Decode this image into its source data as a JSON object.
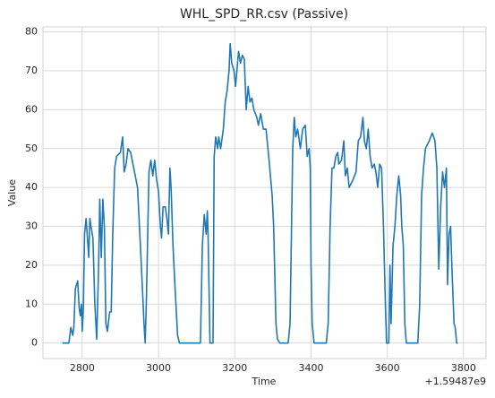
{
  "chart_data": {
    "type": "line",
    "title": "WHL_SPD_RR.csv (Passive)",
    "x_label": "Time",
    "y_label": "Value",
    "x_offset_label": "+1.59487e9",
    "xlim": [
      2697,
      3859
    ],
    "ylim": [
      -4,
      81.3
    ],
    "xticks": [
      2800,
      3000,
      3200,
      3400,
      3600,
      3800
    ],
    "yticks": [
      0,
      10,
      20,
      30,
      40,
      50,
      60,
      70,
      80
    ],
    "grid": true,
    "x": [
      2748,
      2765,
      2770,
      2775,
      2778,
      2782,
      2788,
      2792,
      2795,
      2798,
      2800,
      2803,
      2806,
      2810,
      2813,
      2817,
      2820,
      2823,
      2828,
      2833,
      2838,
      2843,
      2846,
      2850,
      2854,
      2858,
      2862,
      2866,
      2872,
      2876,
      2880,
      2885,
      2890,
      2900,
      2906,
      2910,
      2915,
      2920,
      2927,
      2935,
      2945,
      2955,
      2962,
      2965,
      2968,
      2975,
      2980,
      2985,
      2990,
      2995,
      3000,
      3005,
      3008,
      3012,
      3018,
      3022,
      3026,
      3030,
      3033,
      3038,
      3043,
      3050,
      3055,
      3110,
      3115,
      3120,
      3125,
      3128,
      3130,
      3135,
      3143,
      3146,
      3150,
      3155,
      3158,
      3163,
      3170,
      3175,
      3180,
      3185,
      3188,
      3192,
      3198,
      3202,
      3210,
      3215,
      3220,
      3225,
      3230,
      3235,
      3240,
      3245,
      3250,
      3258,
      3262,
      3268,
      3275,
      3282,
      3290,
      3298,
      3302,
      3308,
      3312,
      3318,
      3340,
      3345,
      3352,
      3356,
      3360,
      3365,
      3372,
      3378,
      3385,
      3390,
      3395,
      3398,
      3400,
      3403,
      3408,
      3440,
      3445,
      3450,
      3455,
      3460,
      3465,
      3470,
      3473,
      3480,
      3486,
      3490,
      3495,
      3500,
      3510,
      3518,
      3524,
      3530,
      3536,
      3540,
      3545,
      3550,
      3555,
      3560,
      3566,
      3570,
      3575,
      3580,
      3585,
      3590,
      3595,
      3598,
      3604,
      3607,
      3610,
      3615,
      3620,
      3625,
      3630,
      3635,
      3638,
      3642,
      3646,
      3650,
      3680,
      3685,
      3690,
      3695,
      3700,
      3710,
      3718,
      3725,
      3730,
      3735,
      3740,
      3745,
      3750,
      3755,
      3758,
      3762,
      3766,
      3770,
      3775,
      3778,
      3782,
      3785
    ],
    "series": [
      {
        "name": "WHL_SPD_RR",
        "color": "#1f77b4",
        "values": [
          0,
          0,
          4,
          2,
          4,
          14,
          16,
          9,
          7,
          10,
          3,
          9,
          28,
          32,
          28,
          22,
          32,
          30,
          27,
          10,
          1,
          20,
          37,
          22,
          37,
          30,
          5,
          3,
          8,
          8,
          28,
          45,
          48,
          49,
          53,
          44,
          46,
          50,
          49,
          45,
          40,
          20,
          5,
          0,
          10,
          44,
          47,
          43,
          47,
          42,
          39,
          30,
          27,
          35,
          35,
          32,
          28,
          45,
          40,
          25,
          15,
          2,
          0,
          0,
          25,
          33,
          28,
          34,
          28,
          0,
          0,
          48,
          53,
          50,
          53,
          50,
          55,
          62,
          65,
          70,
          77,
          72,
          70,
          66,
          75,
          72,
          74,
          73,
          60,
          66,
          62,
          63,
          60,
          58,
          56,
          59,
          55,
          55,
          47,
          38,
          30,
          5,
          1,
          0,
          0,
          5,
          50,
          58,
          53,
          55,
          50,
          55,
          56,
          48,
          50,
          45,
          20,
          5,
          0,
          0,
          5,
          30,
          45,
          45,
          48,
          49,
          46,
          47,
          52,
          43,
          45,
          40,
          42,
          44,
          52,
          53,
          58,
          52,
          50,
          55,
          48,
          45,
          46,
          44,
          40,
          46,
          45,
          30,
          10,
          0,
          0,
          20,
          5,
          25,
          30,
          38,
          43,
          38,
          30,
          25,
          5,
          0,
          0,
          10,
          38,
          45,
          50,
          52,
          54,
          52,
          45,
          19,
          35,
          44,
          40,
          45,
          15,
          28,
          30,
          18,
          5,
          4,
          0,
          0
        ]
      }
    ]
  }
}
